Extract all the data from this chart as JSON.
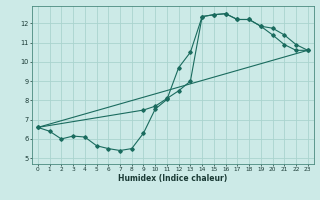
{
  "xlabel": "Humidex (Indice chaleur)",
  "bg_color": "#cceae7",
  "line_color": "#1a6b5e",
  "grid_color": "#aad4ce",
  "xlim": [
    -0.5,
    23.5
  ],
  "ylim": [
    4.7,
    12.9
  ],
  "xticks": [
    0,
    1,
    2,
    3,
    4,
    5,
    6,
    7,
    8,
    9,
    10,
    11,
    12,
    13,
    14,
    15,
    16,
    17,
    18,
    19,
    20,
    21,
    22,
    23
  ],
  "yticks": [
    5,
    6,
    7,
    8,
    9,
    10,
    11,
    12
  ],
  "line1_x": [
    0,
    1,
    2,
    3,
    4,
    5,
    6,
    7,
    8,
    9,
    10,
    11,
    12,
    13,
    14,
    15,
    16,
    17,
    18,
    19,
    20,
    21,
    22,
    23
  ],
  "line1_y": [
    6.6,
    6.4,
    6.0,
    6.15,
    6.1,
    5.65,
    5.5,
    5.4,
    5.5,
    6.3,
    7.55,
    8.05,
    9.7,
    10.5,
    12.35,
    12.45,
    12.5,
    12.2,
    12.2,
    11.85,
    11.4,
    10.9,
    10.6,
    10.6
  ],
  "line2_x": [
    0,
    23
  ],
  "line2_y": [
    6.6,
    10.6
  ],
  "line3_x": [
    0,
    9,
    10,
    11,
    12,
    13,
    14,
    15,
    16,
    17,
    18,
    19,
    20,
    21,
    22,
    23
  ],
  "line3_y": [
    6.6,
    7.5,
    7.7,
    8.1,
    8.5,
    9.0,
    12.35,
    12.45,
    12.5,
    12.2,
    12.2,
    11.85,
    11.75,
    11.4,
    10.9,
    10.6
  ]
}
